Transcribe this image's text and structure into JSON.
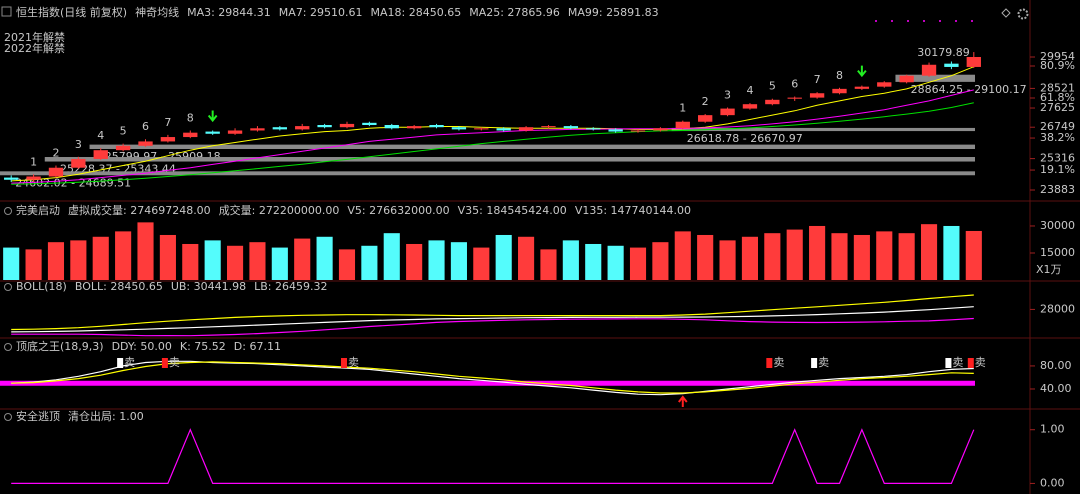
{
  "chart_data": [
    {
      "type": "candlestick",
      "title": "恒生指数(日线 前复权)",
      "indicator": "神奇均线",
      "legend": [
        {
          "text": "MA3: 29844.31",
          "color": "#ffffff"
        },
        {
          "text": "MA7: 29510.61",
          "color": "#ffff00"
        },
        {
          "text": "MA18: 28450.65",
          "color": "#ff00ff"
        },
        {
          "text": "MA25: 27865.96",
          "color": "#00e000"
        },
        {
          "text": "MA99: 25891.83",
          "color": "#d0d0d0"
        }
      ],
      "notes": [
        "2021年解禁",
        "2022年解禁"
      ],
      "note_color": "#ffff00",
      "up_color": "#ff3b3b",
      "down_color": "#54fcfc",
      "candles": [
        [
          24450,
          24550,
          24250,
          24350
        ],
        [
          24350,
          24600,
          24250,
          24500
        ],
        [
          24500,
          25000,
          24450,
          24900
        ],
        [
          24900,
          25400,
          24850,
          25300
        ],
        [
          25300,
          25800,
          25250,
          25700
        ],
        [
          25700,
          26000,
          25650,
          25900
        ],
        [
          25900,
          26200,
          25850,
          26100
        ],
        [
          26100,
          26400,
          26050,
          26300
        ],
        [
          26300,
          26600,
          26250,
          26500
        ],
        [
          26550,
          26600,
          26400,
          26450
        ],
        [
          26450,
          26700,
          26400,
          26600
        ],
        [
          26600,
          26800,
          26550,
          26700
        ],
        [
          26750,
          26800,
          26600,
          26650
        ],
        [
          26650,
          26900,
          26600,
          26800
        ],
        [
          26850,
          26900,
          26700,
          26750
        ],
        [
          26750,
          27000,
          26700,
          26900
        ],
        [
          26950,
          27000,
          26800,
          26850
        ],
        [
          26850,
          26900,
          26650,
          26700
        ],
        [
          26700,
          26850,
          26650,
          26800
        ],
        [
          26850,
          26900,
          26700,
          26750
        ],
        [
          26750,
          26800,
          26600,
          26650
        ],
        [
          26650,
          26750,
          26600,
          26700
        ],
        [
          26700,
          26750,
          26550,
          26600
        ],
        [
          26600,
          26800,
          26550,
          26750
        ],
        [
          26750,
          26850,
          26700,
          26800
        ],
        [
          26800,
          26850,
          26650,
          26700
        ],
        [
          26700,
          26750,
          26600,
          26650
        ],
        [
          26650,
          26700,
          26500,
          26550
        ],
        [
          26550,
          26650,
          26500,
          26600
        ],
        [
          26600,
          26750,
          26550,
          26700
        ],
        [
          26700,
          27050,
          26650,
          27000
        ],
        [
          27000,
          27350,
          26950,
          27300
        ],
        [
          27300,
          27650,
          27250,
          27600
        ],
        [
          27600,
          27850,
          27550,
          27800
        ],
        [
          27800,
          28050,
          27750,
          28000
        ],
        [
          28050,
          28150,
          27950,
          28100
        ],
        [
          28100,
          28350,
          28050,
          28300
        ],
        [
          28300,
          28550,
          28250,
          28500
        ],
        [
          28500,
          28650,
          28450,
          28600
        ],
        [
          28600,
          28850,
          28550,
          28800
        ],
        [
          28800,
          29150,
          28750,
          29100
        ],
        [
          29100,
          29700,
          29050,
          29600
        ],
        [
          29650,
          29750,
          29400,
          29500
        ],
        [
          29500,
          30179.89,
          29450,
          29954
        ]
      ],
      "peak_index": 43,
      "lines": [
        {
          "color": "#ffff00",
          "values": [
            24300,
            24350,
            24450,
            24600,
            24800,
            25000,
            25200,
            25450,
            25700,
            25900,
            26050,
            26200,
            26350,
            26450,
            26550,
            26600,
            26700,
            26750,
            26750,
            26780,
            26780,
            26750,
            26720,
            26700,
            26700,
            26700,
            26700,
            26680,
            26650,
            26650,
            26680,
            26750,
            26900,
            27100,
            27300,
            27500,
            27750,
            27950,
            28150,
            28300,
            28500,
            28800,
            29100,
            29510.61
          ]
        },
        {
          "color": "#ff00ff",
          "values": [
            24200,
            24230,
            24280,
            24350,
            24450,
            24550,
            24650,
            24780,
            24900,
            25050,
            25200,
            25350,
            25500,
            25650,
            25800,
            25950,
            26100,
            26200,
            26300,
            26400,
            26450,
            26500,
            26550,
            26600,
            26620,
            26650,
            26660,
            26670,
            26680,
            26680,
            26690,
            26720,
            26760,
            26820,
            26900,
            27000,
            27120,
            27250,
            27400,
            27550,
            27750,
            27950,
            28200,
            28450.65
          ]
        },
        {
          "color": "#00e000",
          "values": [
            24150,
            24170,
            24200,
            24240,
            24290,
            24350,
            24420,
            24500,
            24580,
            24670,
            24760,
            24860,
            24960,
            25060,
            25170,
            25280,
            25400,
            25520,
            25640,
            25760,
            25880,
            26000,
            26100,
            26200,
            26300,
            26380,
            26450,
            26500,
            26550,
            26580,
            26600,
            26630,
            26670,
            26720,
            26780,
            26850,
            26930,
            27020,
            27120,
            27230,
            27350,
            27480,
            27650,
            27865.96
          ]
        }
      ],
      "ylim": [
        23518,
        31917
      ],
      "yticks": [
        29954,
        28521,
        27625,
        26749,
        25316,
        23883
      ],
      "levels": [
        {
          "value": 29543,
          "label": "80.9%"
        },
        {
          "value": 28082,
          "label": "61.8%"
        },
        {
          "value": 26255,
          "label": "38.2%"
        },
        {
          "value": 24794,
          "label": "19.1%"
        }
      ],
      "ranges": [
        {
          "label": "28864.25 - 29100.17",
          "low": 28864.25,
          "high": 29100.17,
          "start": 40
        },
        {
          "label": "26618.78 - 26670.97",
          "low": 26618.78,
          "high": 26670.97,
          "start": 30
        },
        {
          "label": "25799.97 - 25909.18",
          "low": 25799.97,
          "high": 25909.18,
          "start": 4
        },
        {
          "label": "25228.37 - 25343.44",
          "low": 25228.37,
          "high": 25343.44,
          "start": 2
        },
        {
          "label": "24602.02 - 24689.51",
          "low": 24602.02,
          "high": 24689.51,
          "start": 0
        }
      ],
      "counts": [
        {
          "index": 1,
          "text": "1"
        },
        {
          "index": 2,
          "text": "2"
        },
        {
          "index": 3,
          "text": "3"
        },
        {
          "index": 4,
          "text": "4"
        },
        {
          "index": 5,
          "text": "5"
        },
        {
          "index": 6,
          "text": "6"
        },
        {
          "index": 7,
          "text": "7"
        },
        {
          "index": 8,
          "text": "8"
        },
        {
          "index": 30,
          "text": "1"
        },
        {
          "index": 31,
          "text": "2"
        },
        {
          "index": 32,
          "text": "3"
        },
        {
          "index": 33,
          "text": "4"
        },
        {
          "index": 34,
          "text": "5"
        },
        {
          "index": 35,
          "text": "6"
        },
        {
          "index": 36,
          "text": "7"
        },
        {
          "index": 37,
          "text": "8"
        }
      ],
      "count_color": "#ff5a5a",
      "arrows": [
        9,
        38
      ],
      "arrow_color": "#22ee22"
    },
    {
      "type": "bar",
      "title": "完美启动",
      "legend": [
        {
          "text": "虚拟成交量: 274697248.00",
          "color": "#54fcfc"
        },
        {
          "text": "成交量: 272200000.00",
          "color": "#ffff00"
        },
        {
          "text": "V5: 276632000.00",
          "color": "#ffffff"
        },
        {
          "text": "V35: 184545424.00",
          "color": "#00e000"
        },
        {
          "text": "V135: 147740144.00",
          "color": "#ff00ff"
        }
      ],
      "values": [
        18000,
        17000,
        21000,
        22000,
        24000,
        27000,
        32000,
        25000,
        20000,
        22000,
        19000,
        21000,
        18000,
        23000,
        24000,
        17000,
        19000,
        26000,
        20000,
        22000,
        21000,
        18000,
        25000,
        24000,
        17000,
        22000,
        20000,
        19000,
        18000,
        21000,
        27000,
        25000,
        22000,
        24000,
        26000,
        28000,
        30000,
        26000,
        25000,
        27000,
        26000,
        31000,
        30000,
        27220
      ],
      "ylim": [
        0,
        42200
      ],
      "yticks": [
        30000,
        15000
      ],
      "unit": "X1万"
    },
    {
      "type": "line",
      "title": "BOLL(18)",
      "legend": [
        {
          "text": "BOLL: 28450.65",
          "color": "#ffffff"
        },
        {
          "text": "UB: 30441.98",
          "color": "#ffff00"
        },
        {
          "text": "LB: 26459.32",
          "color": "#ff00ff"
        }
      ],
      "series": [
        {
          "color": "#ffffff",
          "values": [
            24200,
            24230,
            24280,
            24350,
            24450,
            24550,
            24650,
            24780,
            24900,
            25050,
            25200,
            25350,
            25500,
            25650,
            25800,
            25950,
            26100,
            26200,
            26300,
            26400,
            26450,
            26500,
            26550,
            26600,
            26620,
            26650,
            26660,
            26670,
            26680,
            26680,
            26690,
            26720,
            26760,
            26820,
            26900,
            27000,
            27120,
            27250,
            27400,
            27550,
            27750,
            27950,
            28200,
            28450.65
          ]
        },
        {
          "color": "#ffff00",
          "values": [
            24600,
            24650,
            24750,
            24900,
            25150,
            25450,
            25750,
            26000,
            26250,
            26450,
            26650,
            26800,
            26900,
            27000,
            27050,
            27100,
            27100,
            27080,
            27050,
            27000,
            26950,
            26950,
            26950,
            26950,
            26950,
            26950,
            26950,
            26950,
            26950,
            26950,
            27050,
            27200,
            27450,
            27700,
            27950,
            28200,
            28450,
            28700,
            28950,
            29200,
            29500,
            29850,
            30150,
            30441.98
          ]
        },
        {
          "color": "#ff00ff",
          "values": [
            23800,
            23810,
            23810,
            23800,
            23750,
            23650,
            23550,
            23560,
            23550,
            23650,
            23750,
            23900,
            24100,
            24300,
            24550,
            24800,
            25100,
            25320,
            25550,
            25800,
            25950,
            26050,
            26150,
            26250,
            26290,
            26350,
            26370,
            26390,
            26410,
            26410,
            26330,
            26240,
            26070,
            25940,
            25850,
            25800,
            25790,
            25800,
            25850,
            25900,
            26000,
            26050,
            26250,
            26459.32
          ]
        }
      ],
      "ylim": [
        23500,
        32300
      ],
      "yticks": [
        28000
      ]
    },
    {
      "type": "line",
      "title": "顶底之王(18,9,3)",
      "legend": [
        {
          "text": "DDY: 50.00",
          "color": "#ff00ff"
        },
        {
          "text": "K: 75.52",
          "color": "#ffffff"
        },
        {
          "text": "D: 67.11",
          "color": "#ff40ff"
        }
      ],
      "ddy": 50,
      "ddy_color": "#ff00ff",
      "series": [
        {
          "color": "#ffffff",
          "values": [
            50,
            52,
            56,
            62,
            70,
            80,
            86,
            88,
            88,
            86,
            85,
            84,
            82,
            80,
            78,
            76,
            74,
            70,
            66,
            62,
            58,
            55,
            52,
            48,
            45,
            42,
            38,
            34,
            31,
            30,
            32,
            36,
            40,
            44,
            48,
            52,
            55,
            58,
            60,
            62,
            65,
            70,
            74,
            75.52
          ]
        },
        {
          "color": "#ffff00",
          "values": [
            50,
            51,
            54,
            58,
            64,
            72,
            79,
            84,
            86,
            87,
            86,
            85,
            84,
            82,
            80,
            78,
            76,
            73,
            70,
            66,
            62,
            59,
            56,
            52,
            49,
            46,
            42,
            38,
            35,
            33,
            33,
            35,
            38,
            41,
            45,
            49,
            52,
            55,
            58,
            60,
            62,
            65,
            68,
            67.11
          ]
        }
      ],
      "markers": [
        {
          "index": 5,
          "text": "卖",
          "style": "#ffffff"
        },
        {
          "index": 7,
          "text": "卖",
          "style": "#ff2020"
        },
        {
          "index": 15,
          "text": "卖",
          "style": "#ff2020"
        },
        {
          "index": 34,
          "text": "卖",
          "style": "#ff2020"
        },
        {
          "index": 36,
          "text": "卖",
          "style": "#ffffff"
        },
        {
          "index": 42,
          "text": "卖",
          "style": "#ffffff"
        },
        {
          "index": 43,
          "text": "卖",
          "style": "#ff2020"
        }
      ],
      "up_arrow": 30,
      "ylim": [
        7,
        125
      ],
      "yticks": [
        {
          "value": 80,
          "label": "80.00"
        },
        {
          "value": 40,
          "label": "40.00"
        }
      ]
    },
    {
      "type": "line",
      "title": "安全逃顶",
      "legend": [
        {
          "text": "清仓出局: 1.00",
          "color": "#ff00ff"
        }
      ],
      "series": [
        {
          "color": "#ff00ff",
          "values": [
            0,
            0,
            0,
            0,
            0,
            0,
            0,
            0,
            1,
            0,
            0,
            0,
            0,
            0,
            0,
            0,
            0,
            0,
            0,
            0,
            0,
            0,
            0,
            0,
            0,
            0,
            0,
            0,
            0,
            0,
            0,
            0,
            0,
            0,
            0,
            1,
            0,
            0,
            1,
            0,
            0,
            0,
            0,
            1
          ]
        }
      ],
      "ylim": [
        -0.16,
        1.33
      ],
      "yticks": [
        {
          "value": 1,
          "label": "1.00"
        },
        {
          "value": 0,
          "label": "0.00"
        }
      ]
    }
  ]
}
